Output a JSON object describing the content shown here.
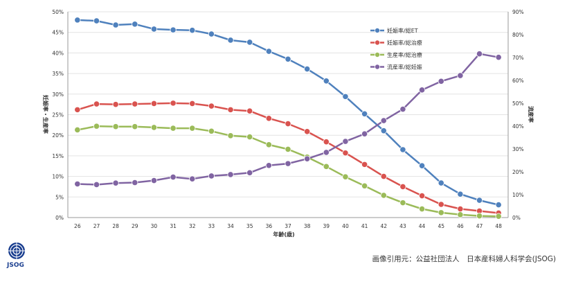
{
  "chart_data": {
    "type": "line",
    "xlabel": "年齢(歳)",
    "ylabel_left": "妊娠率・生産率",
    "ylabel_right": "流産率",
    "x": [
      26,
      27,
      28,
      29,
      30,
      31,
      32,
      33,
      34,
      35,
      36,
      37,
      38,
      39,
      40,
      41,
      42,
      43,
      44,
      45,
      46,
      47,
      48
    ],
    "ylim_left": [
      0,
      50
    ],
    "yticks_left": [
      "0%",
      "5%",
      "10%",
      "15%",
      "20%",
      "25%",
      "30%",
      "35%",
      "40%",
      "45%",
      "50%"
    ],
    "ylim_right": [
      0,
      90
    ],
    "yticks_right": [
      "0%",
      "10%",
      "20%",
      "30%",
      "40%",
      "50%",
      "60%",
      "70%",
      "80%",
      "90%"
    ],
    "grid": true,
    "legend_position": "top-right",
    "series": [
      {
        "name": "妊娠率/総ET",
        "axis": "left",
        "color": "#4f81bd",
        "values": [
          48.0,
          47.8,
          46.8,
          47.0,
          45.8,
          45.6,
          45.5,
          44.6,
          43.1,
          42.6,
          40.4,
          38.5,
          36.1,
          33.2,
          29.4,
          25.2,
          21.1,
          16.5,
          12.6,
          8.4,
          5.7,
          4.2,
          3.1
        ]
      },
      {
        "name": "妊娠率/総治療",
        "axis": "left",
        "color": "#d9534f",
        "values": [
          26.2,
          27.6,
          27.5,
          27.6,
          27.7,
          27.8,
          27.7,
          27.1,
          26.2,
          25.9,
          24.1,
          22.8,
          20.9,
          18.4,
          15.7,
          12.9,
          10.0,
          7.5,
          5.3,
          3.2,
          2.1,
          1.6,
          1.1
        ]
      },
      {
        "name": "生産率/総治療",
        "axis": "left",
        "color": "#9bbb59",
        "values": [
          21.3,
          22.2,
          22.1,
          22.1,
          21.9,
          21.7,
          21.7,
          21.0,
          19.9,
          19.6,
          17.7,
          16.6,
          14.7,
          12.4,
          9.9,
          7.7,
          5.4,
          3.6,
          2.1,
          1.2,
          0.7,
          0.4,
          0.3
        ]
      },
      {
        "name": "流産率/総妊娠",
        "axis": "right",
        "color": "#8064a2",
        "values": [
          14.7,
          14.4,
          15.1,
          15.3,
          16.2,
          17.7,
          16.9,
          18.2,
          18.8,
          19.6,
          22.8,
          23.6,
          25.7,
          28.5,
          33.3,
          36.6,
          42.4,
          47.4,
          55.8,
          59.6,
          62.1,
          71.6,
          70.1
        ]
      }
    ]
  },
  "credit": "画像引用元：公益社団法人　日本産科婦人科学会(JSOG)",
  "logo": {
    "text": "JSOG",
    "color": "#1a3e8f"
  }
}
